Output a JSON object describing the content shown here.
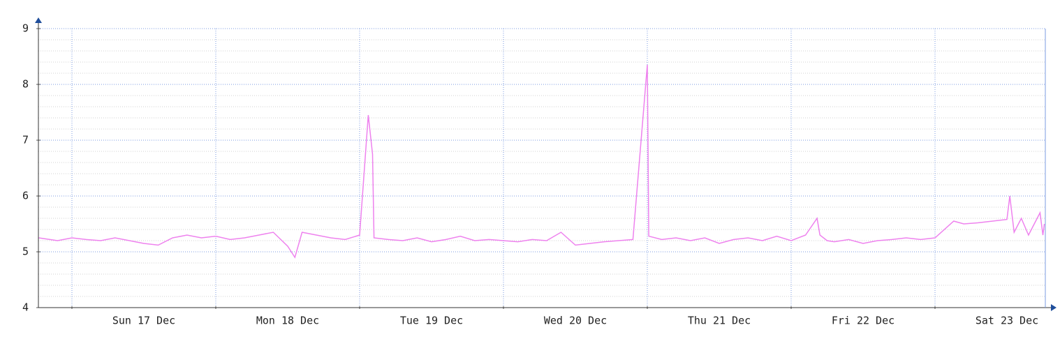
{
  "chart_data": {
    "type": "line",
    "x": [
      -0.23,
      -0.1,
      0,
      0.1,
      0.2,
      0.3,
      0.4,
      0.5,
      0.6,
      0.7,
      0.8,
      0.9,
      1.0,
      1.1,
      1.2,
      1.3,
      1.4,
      1.5,
      1.55,
      1.6,
      1.7,
      1.8,
      1.9,
      2.0,
      2.06,
      2.09,
      2.1,
      2.2,
      2.3,
      2.4,
      2.5,
      2.6,
      2.7,
      2.8,
      2.9,
      3.0,
      3.1,
      3.2,
      3.3,
      3.4,
      3.5,
      3.6,
      3.7,
      3.8,
      3.9,
      4.0,
      4.01,
      4.1,
      4.2,
      4.3,
      4.4,
      4.5,
      4.6,
      4.7,
      4.8,
      4.9,
      5.0,
      5.1,
      5.18,
      5.2,
      5.25,
      5.3,
      5.4,
      5.5,
      5.6,
      5.7,
      5.8,
      5.9,
      6.0,
      6.13,
      6.2,
      6.3,
      6.4,
      6.5,
      6.52,
      6.55,
      6.6,
      6.65,
      6.7,
      6.73,
      6.75,
      6.76
    ],
    "series": [
      {
        "color": "#ee82ee",
        "values": [
          5.25,
          5.2,
          5.25,
          5.22,
          5.2,
          5.25,
          5.2,
          5.15,
          5.12,
          5.25,
          5.3,
          5.25,
          5.28,
          5.22,
          5.25,
          5.3,
          5.35,
          5.1,
          4.9,
          5.35,
          5.3,
          5.25,
          5.22,
          5.3,
          7.45,
          6.75,
          5.25,
          5.22,
          5.2,
          5.25,
          5.18,
          5.22,
          5.28,
          5.2,
          5.22,
          5.2,
          5.18,
          5.22,
          5.2,
          5.35,
          5.12,
          5.15,
          5.18,
          5.2,
          5.22,
          8.35,
          5.28,
          5.22,
          5.25,
          5.2,
          5.25,
          5.15,
          5.22,
          5.25,
          5.2,
          5.28,
          5.2,
          5.3,
          5.6,
          5.3,
          5.2,
          5.18,
          5.22,
          5.15,
          5.2,
          5.22,
          5.25,
          5.22,
          5.25,
          5.55,
          5.5,
          5.52,
          5.55,
          5.58,
          6.0,
          5.35,
          5.6,
          5.3,
          5.55,
          5.7,
          5.3,
          5.5
        ]
      }
    ],
    "xlim": [
      -0.233,
      6.767
    ],
    "xticks": [
      {
        "value": 0.5,
        "label": "Sun 17 Dec"
      },
      {
        "value": 1.5,
        "label": "Mon 18 Dec"
      },
      {
        "value": 2.5,
        "label": "Tue 19 Dec"
      },
      {
        "value": 3.5,
        "label": "Wed 20 Dec"
      },
      {
        "value": 4.5,
        "label": "Thu 21 Dec"
      },
      {
        "value": 5.5,
        "label": "Fri 22 Dec"
      },
      {
        "value": 6.5,
        "label": "Sat 23 Dec"
      }
    ],
    "xgrid": [
      0,
      1,
      2,
      3,
      4,
      5,
      6
    ],
    "ylim": [
      4,
      9
    ],
    "yticks": [
      4,
      5,
      6,
      7,
      8,
      9
    ],
    "yminor": [
      4.2,
      4.4,
      4.6,
      4.8,
      5.2,
      5.4,
      5.6,
      5.8,
      6.2,
      6.4,
      6.6,
      6.8,
      7.2,
      7.4,
      7.6,
      7.8,
      8.2,
      8.4,
      8.6,
      8.8
    ],
    "grid": true
  }
}
